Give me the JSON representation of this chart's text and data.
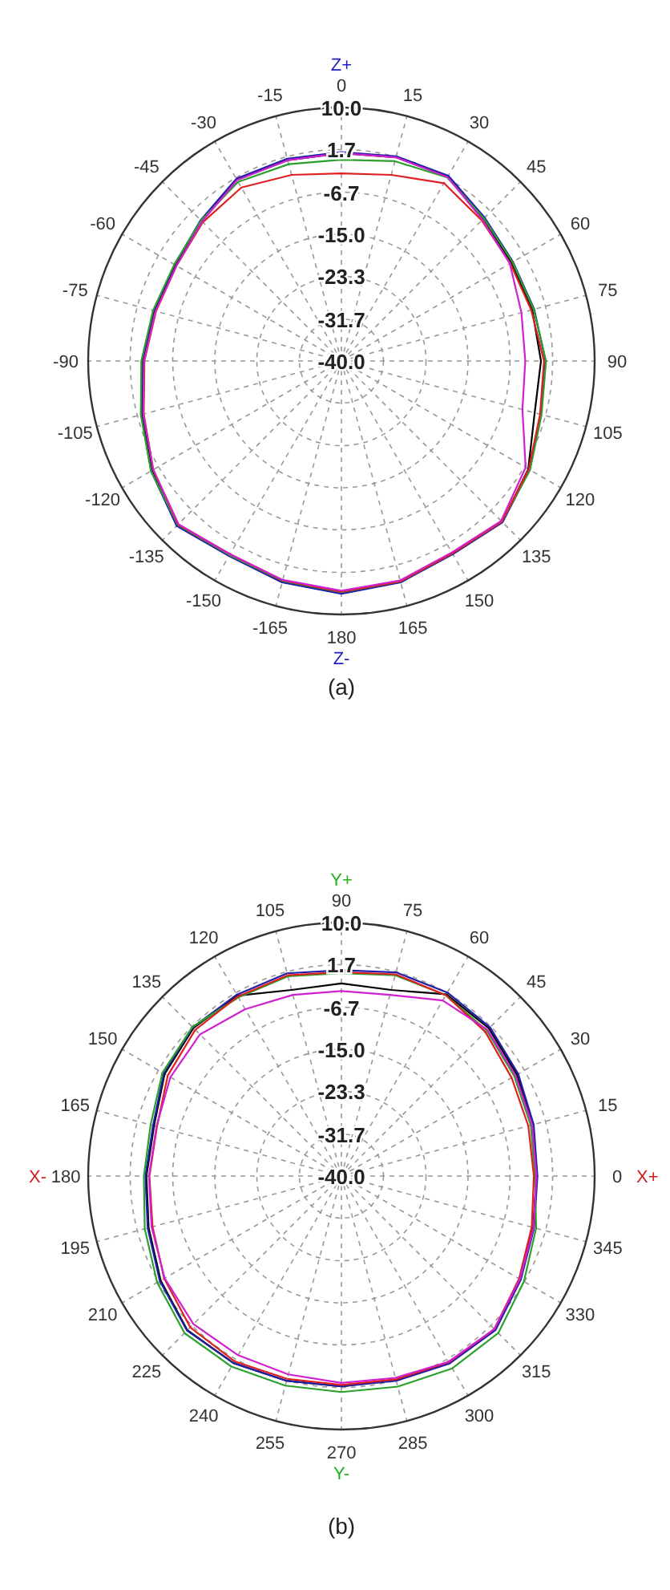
{
  "chart_data": [
    {
      "type": "radar",
      "title": "(a)",
      "categories": [
        "0",
        "15",
        "30",
        "45",
        "60",
        "75",
        "90",
        "105",
        "120",
        "135",
        "150",
        "165",
        "180",
        "-165",
        "-150",
        "-135",
        "-120",
        "-105",
        "-90",
        "-75",
        "-60",
        "-45",
        "-30",
        "-15"
      ],
      "ylim": [
        -40,
        10
      ],
      "yticks": [
        {
          "value": 10,
          "label": "10.0"
        },
        1.7,
        -6.7,
        {
          "value": -15,
          "label": "-15.0"
        },
        -23.3,
        -31.7,
        {
          "value": -40,
          "label": "-40.0"
        }
      ],
      "grid": true,
      "annotations": [
        {
          "text": "Z+",
          "x": "0"
        },
        {
          "text": "Z-",
          "x": "180"
        }
      ],
      "series": [
        {
          "color": "#000000",
          "values": [
            1.0,
            1.6,
            2.0,
            -0.5,
            -1.2,
            -1.0,
            -0.6,
            -0.5,
            2.6,
            4.9,
            3.9,
            5.1,
            5.8,
            5.1,
            4.3,
            5.9,
            3.2,
            0.7,
            -0.8,
            -1.8,
            -2.2,
            -0.9,
            1.3,
            1.0
          ]
        },
        {
          "color": "#1f1fa8",
          "values": [
            1.2,
            1.8,
            2.2,
            0.0,
            -0.9,
            -0.6,
            0.3,
            0.8,
            2.9,
            5.0,
            4.0,
            5.2,
            5.9,
            5.2,
            4.4,
            6.0,
            3.4,
            0.9,
            -0.6,
            -1.6,
            -2.0,
            -0.7,
            1.5,
            1.3
          ]
        },
        {
          "color": "#2ca02c",
          "values": [
            -0.3,
            0.8,
            1.8,
            -0.2,
            -1.0,
            -0.7,
            0.4,
            0.9,
            3.0,
            4.8,
            3.8,
            5.0,
            5.6,
            4.9,
            4.2,
            5.7,
            3.4,
            1.0,
            -0.5,
            -1.5,
            -1.9,
            -0.8,
            0.8,
            0.2
          ]
        },
        {
          "color": "#e02020",
          "values": [
            -3.0,
            -2.0,
            0.5,
            -0.8,
            -1.5,
            -1.2,
            0.0,
            0.6,
            2.7,
            4.8,
            3.8,
            5.0,
            5.5,
            4.8,
            4.0,
            5.6,
            2.9,
            0.4,
            -1.1,
            -2.1,
            -2.4,
            -1.3,
            -0.5,
            -2.0
          ]
        },
        {
          "color": "#d020d0",
          "values": [
            1.0,
            1.6,
            1.9,
            -0.6,
            -1.6,
            -3.2,
            -3.7,
            -3.0,
            2.0,
            4.6,
            3.6,
            4.8,
            5.3,
            4.7,
            4.0,
            5.5,
            2.9,
            0.5,
            -1.0,
            -2.0,
            -2.4,
            -1.1,
            1.2,
            1.0
          ]
        }
      ]
    },
    {
      "type": "radar",
      "title": "(b)",
      "categories": [
        "90",
        "75",
        "60",
        "45",
        "30",
        "15",
        "0",
        "345",
        "330",
        "315",
        "300",
        "285",
        "270",
        "255",
        "240",
        "225",
        "210",
        "195",
        "180",
        "165",
        "150",
        "135",
        "120",
        "105"
      ],
      "ylim": [
        -40,
        10
      ],
      "yticks": [
        {
          "value": 10,
          "label": "10.0"
        },
        1.7,
        -6.7,
        {
          "value": -15,
          "label": "-15.0"
        },
        -23.3,
        -31.7,
        {
          "value": -40,
          "label": "-40.0"
        }
      ],
      "grid": true,
      "annotations": [
        {
          "text": "Y+",
          "x": "90"
        },
        {
          "text": "Y-",
          "x": "270"
        },
        {
          "text": "X+",
          "x": "0"
        },
        {
          "text": "X-",
          "x": "180"
        }
      ],
      "series": [
        {
          "color": "#000000",
          "values": [
            -2.0,
            -2.0,
            1.4,
            1.2,
            0.0,
            -0.9,
            -1.5,
            -0.8,
            0.7,
            2.8,
            2.5,
            1.6,
            1.5,
            1.8,
            2.6,
            3.0,
            1.2,
            -0.6,
            -1.5,
            -1.7,
            0.3,
            1.3,
            1.1,
            -2.0
          ]
        },
        {
          "color": "#1f1fa8",
          "values": [
            0.6,
            1.6,
            1.8,
            1.5,
            0.3,
            -0.7,
            -1.3,
            -0.6,
            0.9,
            3.0,
            2.7,
            1.8,
            1.5,
            1.8,
            2.6,
            3.1,
            1.4,
            -0.4,
            -1.3,
            -1.5,
            0.5,
            1.5,
            1.3,
            1.4
          ]
        },
        {
          "color": "#2ca02c",
          "values": [
            0.0,
            1.0,
            1.2,
            0.6,
            -0.6,
            -1.3,
            -1.8,
            -0.2,
            1.6,
            3.8,
            3.8,
            3.0,
            2.6,
            2.8,
            3.4,
            3.8,
            2.0,
            0.2,
            -1.0,
            -1.0,
            0.8,
            1.6,
            0.7,
            0.8
          ]
        },
        {
          "color": "#e02020",
          "values": [
            0.2,
            1.2,
            1.2,
            0.2,
            -1.2,
            -1.8,
            -2.0,
            -1.1,
            0.5,
            2.7,
            2.4,
            1.5,
            1.2,
            1.4,
            2.2,
            2.2,
            0.4,
            -1.4,
            -2.1,
            -2.3,
            -0.4,
            0.8,
            0.9,
            1.0
          ]
        },
        {
          "color": "#d020d0",
          "values": [
            -3.5,
            -3.0,
            0.0,
            0.8,
            -0.3,
            -1.0,
            -1.5,
            -0.7,
            0.7,
            2.7,
            2.3,
            1.2,
            0.8,
            0.5,
            0.8,
            1.3,
            0.3,
            -1.2,
            -2.0,
            -2.2,
            -1.0,
            -0.5,
            -2.0,
            -3.0
          ]
        }
      ]
    }
  ]
}
